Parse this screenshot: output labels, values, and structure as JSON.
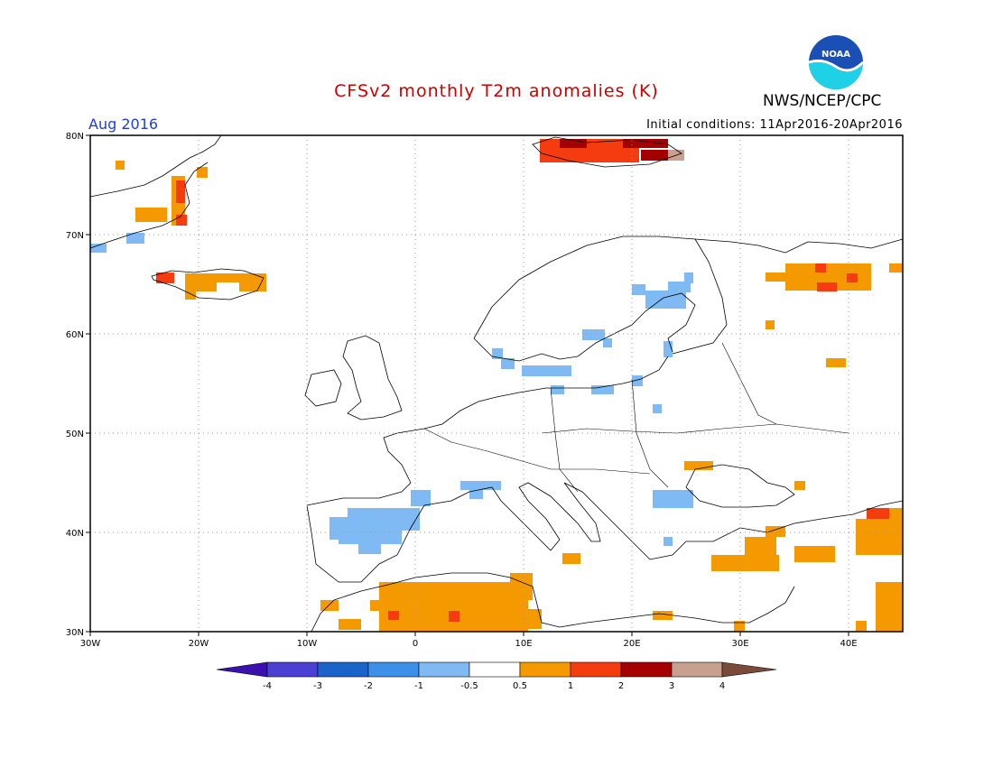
{
  "title": "CFSv2 monthly T2m anomalies (K)",
  "agency": "NWS/NCEP/CPC",
  "logo_text": "NOAA",
  "period": "Aug 2016",
  "initial_conditions": "Initial conditions: 11Apr2016-20Apr2016",
  "map": {
    "region": "Europe",
    "lon_range": [
      -30,
      45
    ],
    "lat_range": [
      30,
      80
    ],
    "lat_ticks": [
      "80N",
      "70N",
      "60N",
      "50N",
      "40N",
      "30N"
    ],
    "lon_ticks": [
      "30W",
      "20W",
      "10W",
      "0",
      "10E",
      "20E",
      "30E",
      "40E"
    ],
    "gridlines": "dotted"
  },
  "colorbar": {
    "labels": [
      "-4",
      "-3",
      "-2",
      "-1",
      "-0.5",
      "0.5",
      "1",
      "2",
      "3",
      "4"
    ],
    "colors": [
      "#3a10b0",
      "#4c3fd3",
      "#1a63c9",
      "#3d8fe8",
      "#7fbaf4",
      "#ffffff",
      "#f49a00",
      "#f53b10",
      "#a50000",
      "#c8a090",
      "#7a4a3a"
    ]
  },
  "anomalies": [
    {
      "lon": [
        -22,
        -18
      ],
      "lat": [
        65,
        67
      ],
      "level": "0.5-1"
    },
    {
      "lon": [
        -25,
        -21
      ],
      "lat": [
        72,
        77
      ],
      "level": "0.5-2"
    },
    {
      "lon": [
        -28,
        -26
      ],
      "lat": [
        69,
        70
      ],
      "level": "-1--0.5"
    },
    {
      "lon": [
        12,
        26
      ],
      "lat": [
        78,
        80
      ],
      "level": "1-3"
    },
    {
      "lon": [
        32,
        45
      ],
      "lat": [
        65,
        67
      ],
      "level": "0.5-2"
    },
    {
      "lon": [
        12,
        25
      ],
      "lat": [
        54,
        66
      ],
      "level": "-1--0.5"
    },
    {
      "lon": [
        -8,
        0
      ],
      "lat": [
        37,
        43
      ],
      "level": "-1--0.5"
    },
    {
      "lon": [
        5,
        8
      ],
      "lat": [
        43,
        45
      ],
      "level": "-1--0.5"
    },
    {
      "lon": [
        22,
        25
      ],
      "lat": [
        42,
        44
      ],
      "level": "-1--0.5"
    },
    {
      "lon": [
        -8,
        12
      ],
      "lat": [
        30,
        36
      ],
      "level": "0.5-2"
    },
    {
      "lon": [
        30,
        45
      ],
      "lat": [
        36,
        42
      ],
      "level": "0.5-2"
    },
    {
      "lon": [
        25,
        28
      ],
      "lat": [
        46,
        47
      ],
      "level": "0.5-1"
    },
    {
      "lon": [
        38,
        40
      ],
      "lat": [
        57,
        58
      ],
      "level": "0.5-1"
    }
  ]
}
